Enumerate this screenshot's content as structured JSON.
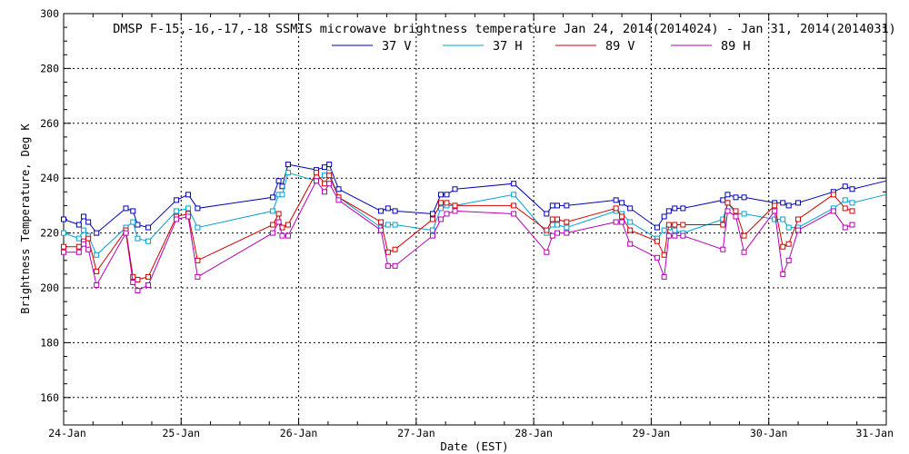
{
  "chart_data": {
    "type": "line",
    "title": "DMSP F-15,-16,-17,-18 SSMIS microwave brightness temperature Jan 24, 2014(2014024) - Jan 31, 2014(2014031)",
    "xlabel": "Date (EST)",
    "ylabel": "Brightness Temperature, Deg K",
    "xlim": [
      0,
      7
    ],
    "ylim": [
      150,
      300
    ],
    "yticks": [
      160,
      180,
      200,
      220,
      240,
      260,
      280,
      300
    ],
    "xticks": [
      {
        "value": 0,
        "label": "24-Jan"
      },
      {
        "value": 1,
        "label": "25-Jan"
      },
      {
        "value": 2,
        "label": "26-Jan"
      },
      {
        "value": 3,
        "label": "27-Jan"
      },
      {
        "value": 4,
        "label": "28-Jan"
      },
      {
        "value": 5,
        "label": "29-Jan"
      },
      {
        "value": 6,
        "label": "30-Jan"
      },
      {
        "value": 7,
        "label": "31-Jan"
      }
    ],
    "grid": true,
    "legend": "top-center",
    "series": [
      {
        "name": "37 V",
        "color": "#0000b4",
        "x": [
          0.0,
          0.13,
          0.17,
          0.21,
          0.28,
          0.53,
          0.59,
          0.63,
          0.72,
          0.96,
          1.06,
          1.14,
          1.78,
          1.83,
          1.86,
          1.91,
          2.15,
          2.22,
          2.26,
          2.34,
          2.7,
          2.76,
          2.82,
          3.14,
          3.21,
          3.26,
          3.33,
          3.83,
          4.11,
          4.16,
          4.2,
          4.28,
          4.7,
          4.75,
          4.82,
          5.05,
          5.11,
          5.15,
          5.2,
          5.27,
          5.61,
          5.65,
          5.72,
          5.79,
          6.05,
          6.12,
          6.17,
          6.25,
          6.55,
          6.65,
          6.71,
          7.0
        ],
        "y": [
          225,
          223,
          226,
          224,
          220,
          229,
          228,
          223,
          222,
          232,
          234,
          229,
          233,
          239,
          237,
          245,
          243,
          244,
          245,
          236,
          228,
          229,
          228,
          227,
          234,
          234,
          236,
          238,
          227,
          230,
          230,
          230,
          232,
          231,
          229,
          222,
          226,
          228,
          229,
          229,
          232,
          234,
          233,
          233,
          231,
          231,
          230,
          231,
          235,
          237,
          236,
          239
        ]
      },
      {
        "name": "37 H",
        "color": "#00a0d2",
        "x": [
          0.0,
          0.13,
          0.17,
          0.21,
          0.28,
          0.53,
          0.59,
          0.63,
          0.72,
          0.96,
          1.06,
          1.14,
          1.78,
          1.83,
          1.86,
          1.91,
          2.15,
          2.22,
          2.26,
          2.34,
          2.7,
          2.76,
          2.82,
          3.14,
          3.21,
          3.26,
          3.33,
          3.83,
          4.11,
          4.16,
          4.2,
          4.28,
          4.7,
          4.75,
          4.82,
          5.05,
          5.11,
          5.15,
          5.2,
          5.27,
          5.61,
          5.65,
          5.72,
          5.79,
          6.05,
          6.12,
          6.17,
          6.25,
          6.55,
          6.65,
          6.71,
          7.0
        ],
        "y": [
          220,
          218,
          221,
          219,
          212,
          222,
          224,
          218,
          217,
          228,
          229,
          222,
          228,
          234,
          234,
          242,
          239,
          241,
          242,
          233,
          222,
          223,
          223,
          221,
          229,
          230,
          230,
          234,
          220,
          223,
          223,
          222,
          228,
          227,
          224,
          218,
          221,
          222,
          221,
          220,
          225,
          231,
          227,
          227,
          225,
          225,
          222,
          222,
          229,
          232,
          231,
          234
        ]
      },
      {
        "name": "89 V",
        "color": "#d20000",
        "x": [
          0.0,
          0.13,
          0.17,
          0.21,
          0.28,
          0.53,
          0.59,
          0.63,
          0.72,
          0.96,
          1.06,
          1.14,
          1.78,
          1.83,
          1.86,
          1.91,
          2.15,
          2.22,
          2.26,
          2.34,
          2.7,
          2.76,
          2.82,
          3.14,
          3.21,
          3.26,
          3.33,
          3.83,
          4.11,
          4.16,
          4.2,
          4.28,
          4.7,
          4.75,
          4.82,
          5.05,
          5.11,
          5.15,
          5.2,
          5.27,
          5.61,
          5.65,
          5.72,
          5.79,
          6.05,
          6.12,
          6.17,
          6.25,
          6.55,
          6.65,
          6.71
        ],
        "y": [
          215,
          215,
          217,
          218,
          206,
          221,
          204,
          203,
          204,
          226,
          227,
          210,
          223,
          227,
          222,
          223,
          242,
          238,
          241,
          233,
          224,
          213,
          214,
          225,
          231,
          231,
          230,
          230,
          221,
          225,
          225,
          224,
          229,
          226,
          221,
          217,
          212,
          223,
          223,
          223,
          223,
          231,
          228,
          219,
          230,
          215,
          216,
          225,
          234,
          229,
          228
        ]
      },
      {
        "name": "89 H",
        "color": "#b400b4",
        "x": [
          0.0,
          0.13,
          0.17,
          0.21,
          0.28,
          0.53,
          0.59,
          0.63,
          0.72,
          0.96,
          1.06,
          1.14,
          1.78,
          1.83,
          1.86,
          1.91,
          2.15,
          2.22,
          2.26,
          2.34,
          2.7,
          2.76,
          2.82,
          3.14,
          3.21,
          3.26,
          3.33,
          3.83,
          4.11,
          4.16,
          4.2,
          4.28,
          4.7,
          4.75,
          4.82,
          5.05,
          5.11,
          5.15,
          5.2,
          5.27,
          5.61,
          5.65,
          5.72,
          5.79,
          6.05,
          6.12,
          6.17,
          6.25,
          6.55,
          6.65,
          6.71
        ],
        "y": [
          213,
          213,
          216,
          214,
          201,
          220,
          202,
          199,
          201,
          225,
          226,
          204,
          220,
          224,
          219,
          219,
          239,
          235,
          238,
          232,
          221,
          208,
          208,
          219,
          225,
          227,
          228,
          227,
          213,
          219,
          220,
          220,
          224,
          224,
          216,
          211,
          204,
          219,
          219,
          219,
          214,
          228,
          226,
          213,
          228,
          205,
          210,
          221,
          228,
          222,
          223
        ]
      }
    ]
  }
}
